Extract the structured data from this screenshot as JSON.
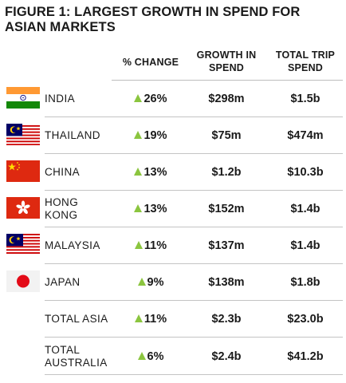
{
  "title": {
    "line1": "FIGURE 1: LARGEST GROWTH IN SPEND FOR",
    "line2": "ASIAN MARKETS"
  },
  "columns": {
    "pct_change": "% CHANGE",
    "growth_line1": "GROWTH IN",
    "growth_line2": "SPEND",
    "total_line1": "TOTAL TRIP",
    "total_line2": "SPEND"
  },
  "accent_color": "#8bc53f",
  "rows": [
    {
      "country": "INDIA",
      "flag_icon": "india-flag-icon",
      "change": "26%",
      "growth": "$298m",
      "total": "$1.5b"
    },
    {
      "country": "THAILAND",
      "flag_icon": "thailand-flag-icon",
      "change": "19%",
      "growth": "$75m",
      "total": "$474m"
    },
    {
      "country": "CHINA",
      "flag_icon": "china-flag-icon",
      "change": "13%",
      "growth": "$1.2b",
      "total": "$10.3b"
    },
    {
      "country": "HONG KONG",
      "flag_icon": "hong-kong-flag-icon",
      "change": "13%",
      "growth": "$152m",
      "total": "$1.4b"
    },
    {
      "country": "MALAYSIA",
      "flag_icon": "malaysia-flag-icon",
      "change": "11%",
      "growth": "$137m",
      "total": "$1.4b"
    },
    {
      "country": "JAPAN",
      "flag_icon": "japan-flag-icon",
      "change": "9%",
      "growth": "$138m",
      "total": "$1.8b"
    },
    {
      "country": "TOTAL ASIA",
      "change": "11%",
      "growth": "$2.3b",
      "total": "$23.0b"
    },
    {
      "country_line1": "TOTAL",
      "country_line2": "AUSTRALIA",
      "change": "6%",
      "growth": "$2.4b",
      "total": "$41.2b"
    }
  ]
}
